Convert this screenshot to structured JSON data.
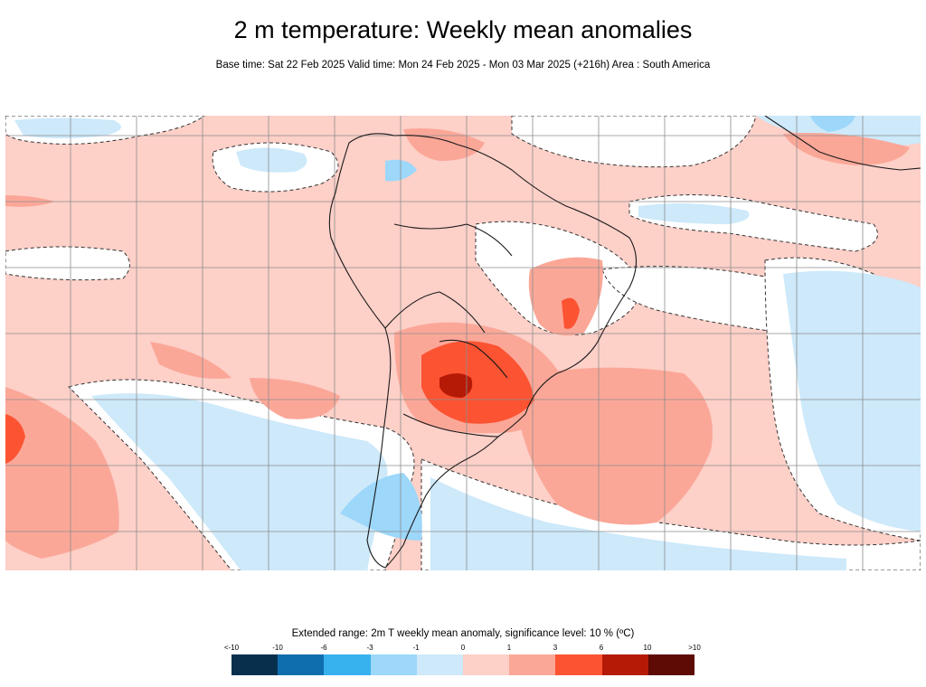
{
  "title": "2 m temperature: Weekly mean anomalies",
  "subtitle": "Base time: Sat 22 Feb 2025 Valid time: Mon 24 Feb 2025 - Mon 03 Mar 2025 (+216h) Area : South America",
  "legend": {
    "title": "Extended range: 2m T weekly mean anomaly, significance level: 10 % (ºC)",
    "labels": [
      "<-10",
      "-10",
      "-6",
      "-3",
      "-1",
      "0",
      "1",
      "3",
      "6",
      "10",
      ">10"
    ],
    "colors": [
      "#08304d",
      "#0f6fae",
      "#37b2ee",
      "#9dd7fa",
      "#cde9fa",
      "#ffffff",
      "#fdd0c8",
      "#fba798",
      "#fc5332",
      "#b51a07",
      "#5d0b04"
    ]
  },
  "map": {
    "area": "South America",
    "background_anomaly_color": "#fdd0c8",
    "land_icon": "south-america-coastline",
    "grid_color": "#8c8c8c",
    "coast_color": "#1a1a1a"
  }
}
